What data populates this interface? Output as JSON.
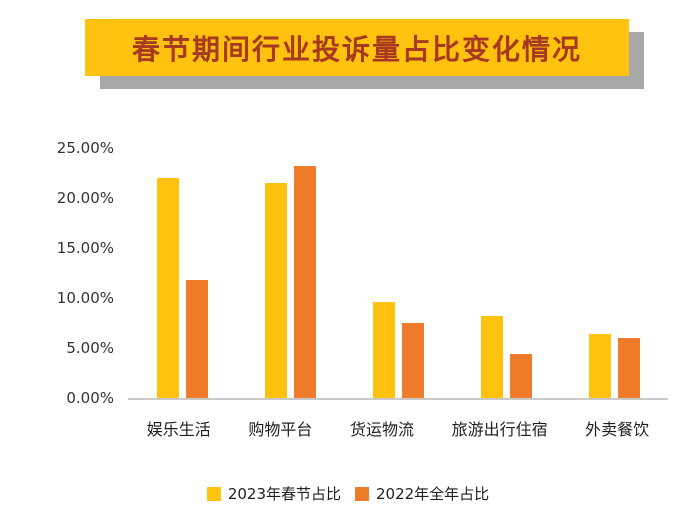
{
  "chart_data": {
    "type": "bar",
    "title": "春节期间行业投诉量占比变化情况",
    "categories": [
      "娱乐生活",
      "购物平台",
      "货运物流",
      "旅游出行住宿",
      "外卖餐饮"
    ],
    "series": [
      {
        "name": "2023年春节占比",
        "color": "#ffc20e",
        "values": [
          22.0,
          21.5,
          9.6,
          8.2,
          6.4
        ]
      },
      {
        "name": "2022年全年占比",
        "color": "#ee7c2b",
        "values": [
          11.8,
          23.2,
          7.5,
          4.4,
          6.0
        ]
      }
    ],
    "ylabel": "",
    "xlabel": "",
    "ylim": [
      0,
      25
    ],
    "yticks": [
      "25.00%",
      "20.00%",
      "15.00%",
      "10.00%",
      "5.00%",
      "0.00%"
    ],
    "grid": false,
    "legend_position": "bottom"
  },
  "colors": {
    "title_background": "#ffc20e",
    "title_text": "#a6391f",
    "title_shadow": "#a8a8a8",
    "axis_line": "#c9c9c9"
  }
}
